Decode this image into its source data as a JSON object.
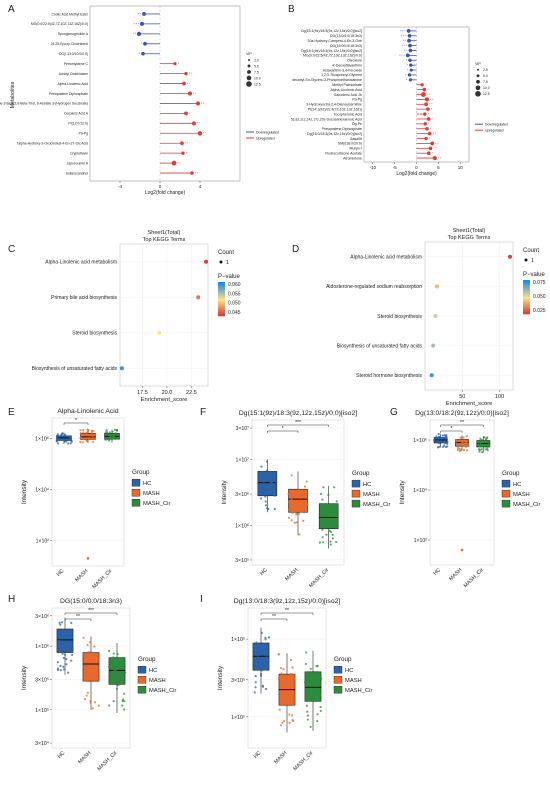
{
  "panels": {
    "A": {
      "letter": "A",
      "ylabel": "Metabolites",
      "xlabel": "Log2(fold change)",
      "xticks": [
        "-4",
        "0",
        "4"
      ],
      "xlim": [
        -7,
        8
      ],
      "metabolites": [
        {
          "name": "Cholic Acid Methyl Ester",
          "fc": -1.6,
          "dir": "down",
          "vip": 1.9,
          "stars": "* *"
        },
        {
          "name": "MG(0:0/22:5(4Z,7Z,10Z,13Z,16Z)/0:0)",
          "fc": -1.8,
          "dir": "down",
          "vip": 2.0,
          "stars": "* * *"
        },
        {
          "name": "Spongionogriolide A",
          "fc": -2.1,
          "dir": "down",
          "vip": 2.1,
          "stars": "* *"
        },
        {
          "name": "24,25-Epoxy-Cholesterol",
          "fc": -1.5,
          "dir": "down",
          "vip": 1.9,
          "stars": "*"
        },
        {
          "name": "DG(i-13:0/10:0/0:0)",
          "fc": -1.7,
          "dir": "down",
          "vip": 1.8,
          "stars": "*"
        },
        {
          "name": "Petromyidene C",
          "fc": 1.5,
          "dir": "up",
          "vip": 1.6,
          "stars": "*"
        },
        {
          "name": "Amidyl Oxathiolane",
          "fc": 2.6,
          "dir": "up",
          "vip": 1.7,
          "stars": "* *"
        },
        {
          "name": "Alpha-Linolenic Acid",
          "fc": 2.4,
          "dir": "up",
          "vip": 1.9,
          "stars": "* *"
        },
        {
          "name": "Presqualene Diphosphate",
          "fc": 3.0,
          "dir": "up",
          "vip": 2.0,
          "stars": "* *"
        },
        {
          "name": "5-Alpha-Cholestane-3-Beta,5,6-Beta-Triol, 6-Acetate 3-(Hydrogen Succinate)",
          "fc": 3.8,
          "dir": "up",
          "vip": 2.1,
          "stars": "* *"
        },
        {
          "name": "Cerpanic Acid A",
          "fc": 2.6,
          "dir": "up",
          "vip": 1.9,
          "stars": "*"
        },
        {
          "name": "PI(12:0/12:0)",
          "fc": 3.4,
          "dir": "up",
          "vip": 2.0,
          "stars": "* *"
        },
        {
          "name": "Pa-Pg",
          "fc": 4.0,
          "dir": "up",
          "vip": 2.2,
          "stars": "* *"
        },
        {
          "name": "7alpha-Hydroxy-3-Oxocholest-4-En-27-Oic Acid",
          "fc": 2.2,
          "dir": "up",
          "vip": 1.8,
          "stars": "* *"
        },
        {
          "name": "Cryptoflavin",
          "fc": 2.3,
          "dir": "up",
          "vip": 1.7,
          "stars": "*"
        },
        {
          "name": "Japonoumin A",
          "fc": 1.4,
          "dir": "up",
          "vip": 2.4,
          "stars": "* *"
        },
        {
          "name": "Solanocardinol",
          "fc": 3.2,
          "dir": "up",
          "vip": 1.8,
          "stars": "* *"
        }
      ],
      "vip_title": "VIP",
      "vip_legend": [
        "2.0",
        "5.0",
        "7.5",
        "10.0",
        "12.5"
      ],
      "legend": [
        "Downregulated",
        "Upregulated"
      ]
    },
    "B": {
      "letter": "B",
      "xlabel": "Log2(fold change)",
      "xticks": [
        "-10",
        "-5",
        "0",
        "5",
        "10"
      ],
      "xlim": [
        -12,
        12
      ],
      "metabolites": [
        {
          "name": "Dg(15:1(9z)/18:3(9z,12z,15z)/0:0)[iso2]",
          "fc": -1.8,
          "dir": "down",
          "vip": 1.9,
          "stars": "* * *"
        },
        {
          "name": "DG(13:0/0:0/18:3n3)",
          "fc": -1.6,
          "dir": "down",
          "vip": 1.8,
          "stars": "* * *"
        },
        {
          "name": "20a-Hydroxy-Campest-4-En-3-One",
          "fc": -1.7,
          "dir": "down",
          "vip": 1.9,
          "stars": "* *"
        },
        {
          "name": "DG(15:0/0:0/18:3n3)",
          "fc": -1.5,
          "dir": "down",
          "vip": 1.8,
          "stars": "* * *"
        },
        {
          "name": "Dg(15:1(9z)/18:3(9z,12z,15z)/0:0)[iso2]",
          "fc": -1.4,
          "dir": "down",
          "vip": 1.8,
          "stars": "* *"
        },
        {
          "name": "MG(0:0/22:5(4Z,7Z,10Z,13Z,16Z)/0:0)",
          "fc": -2.0,
          "dir": "down",
          "vip": 1.9,
          "stars": "* * *"
        },
        {
          "name": "Oleoxime",
          "fc": -1.5,
          "dir": "down",
          "vip": 1.7,
          "stars": "*"
        },
        {
          "name": "4'-Deoxyflavanthrin",
          "fc": -1.3,
          "dir": "down",
          "vip": 1.7,
          "stars": "*"
        },
        {
          "name": "Astaxanthin-3,4-Peroxide",
          "fc": -1.2,
          "dir": "down",
          "vip": 1.6,
          "stars": "*"
        },
        {
          "name": "1,2,3-Tricaprinoyl-Glycerol",
          "fc": -1.6,
          "dir": "down",
          "vip": 1.7,
          "stars": "*"
        },
        {
          "name": "decanyl-Sn-Glycero-3-Phosphoethanolamine",
          "fc": -1.4,
          "dir": "down",
          "vip": 1.6,
          "stars": "*"
        },
        {
          "name": "Methyl Palmoxirate",
          "fc": 1.3,
          "dir": "up",
          "vip": 1.6,
          "stars": "*"
        },
        {
          "name": "Alpha-Linolenic Acid",
          "fc": 1.8,
          "dir": "up",
          "vip": 1.8,
          "stars": "*"
        },
        {
          "name": "Ganoderic Acid Jb",
          "fc": 1.6,
          "dir": "up",
          "vip": 2.4,
          "stars": "* *"
        },
        {
          "name": "Pa-Pg",
          "fc": 2.4,
          "dir": "up",
          "vip": 2.1,
          "stars": "* *"
        },
        {
          "name": "3-Hydroxyoctra-2,4-Dienoylcarnitine",
          "fc": 2.2,
          "dir": "up",
          "vip": 1.9,
          "stars": "* *"
        },
        {
          "name": "PI(14:1(9Z)/22:4(7Z,10Z,13Z,16Z))",
          "fc": 2.6,
          "dir": "up",
          "vip": 1.8,
          "stars": "*"
        },
        {
          "name": "Tocopheronic Acid",
          "fc": 1.9,
          "dir": "up",
          "vip": 1.7,
          "stars": "*"
        },
        {
          "name": "5z,8z,11z,14z,17z,20z-Docosahexaenoic Acid",
          "fc": 2.8,
          "dir": "up",
          "vip": 1.8,
          "stars": "*"
        },
        {
          "name": "Dg-Pe",
          "fc": 2.0,
          "dir": "up",
          "vip": 1.7,
          "stars": "*"
        },
        {
          "name": "Presqualene Diphosphate",
          "fc": 2.4,
          "dir": "up",
          "vip": 1.8,
          "stars": "*"
        },
        {
          "name": "Dg(16:0/18:3(9z,12z,15z)/0:0)[iso2]",
          "fc": 3.0,
          "dir": "up",
          "vip": 1.8,
          "stars": "* *"
        },
        {
          "name": "Gasa06",
          "fc": 2.2,
          "dir": "up",
          "vip": 1.7,
          "stars": "*"
        },
        {
          "name": "SM(d18:0/20:0)",
          "fc": 3.6,
          "dir": "up",
          "vip": 1.9,
          "stars": "* *"
        },
        {
          "name": "Munjin-I",
          "fc": 3.2,
          "dir": "up",
          "vip": 1.8,
          "stars": "* *"
        },
        {
          "name": "Fludrocortisone Acetate",
          "fc": 2.8,
          "dir": "up",
          "vip": 1.8,
          "stars": "*"
        },
        {
          "name": "Atromintone",
          "fc": 4.2,
          "dir": "up",
          "vip": 2.0,
          "stars": "* *"
        }
      ],
      "vip_title": "VIP",
      "vip_legend": [
        "2.5",
        "5.0",
        "7.5",
        "10.0",
        "12.5"
      ],
      "legend": [
        "Downregulated",
        "Upregulated"
      ]
    },
    "C": {
      "letter": "C",
      "title1": "Sheet1(Total)",
      "title2": "Top KEGG Terms",
      "xlabel": "Enrichment_score",
      "xticks": [
        "17.5",
        "20.0",
        "22.5"
      ],
      "xlim": [
        15.2,
        24.2
      ],
      "terms": [
        {
          "name": "Alpha-Linolenic acid metabolism",
          "x": 24.0,
          "p": 0.043
        },
        {
          "name": "Primary bile acid biosynthesis",
          "x": 23.2,
          "p": 0.046
        },
        {
          "name": "Steroid biosynthesis",
          "x": 19.2,
          "p": 0.052
        },
        {
          "name": "Biosynthesis of unsaturated fatty acids",
          "x": 15.4,
          "p": 0.061
        }
      ],
      "count_title": "Count",
      "count_value": "1",
      "pvalue_title": "P−value",
      "pvalue_ticks": [
        "0.060",
        "0.055",
        "0.050",
        "0.045"
      ],
      "prange": [
        0.042,
        0.062
      ]
    },
    "D": {
      "letter": "D",
      "title1": "Sheet1(Total)",
      "title2": "Top KEGG Terms",
      "xlabel": "Enrichment_score",
      "xticks": [
        "50",
        "100"
      ],
      "xlim": [
        0,
        118
      ],
      "terms": [
        {
          "name": "Alpha-Linolenic acid metabolism",
          "x": 114,
          "p": 0.012
        },
        {
          "name": "Aldosterone-regulated sodium reabsorption",
          "x": 16,
          "p": 0.038
        },
        {
          "name": "Steroid biosynthesis",
          "x": 14,
          "p": 0.055
        },
        {
          "name": "Biosynthesis of unsaturated fatty acids",
          "x": 11,
          "p": 0.062
        },
        {
          "name": "Steroid hormone biosynthesis",
          "x": 9,
          "p": 0.08
        }
      ],
      "count_title": "Count",
      "count_value": "1",
      "pvalue_title": "P−value",
      "pvalue_ticks": [
        "0.075",
        "0.050",
        "0.025"
      ],
      "prange": [
        0.008,
        0.085
      ]
    },
    "E": {
      "letter": "E",
      "title": "Alpha-Linolenic Acid",
      "ylabel": "Intensity",
      "yticks": [
        "1×10⁶",
        "1×10⁴",
        "1×10²"
      ],
      "yrange": [
        1.0,
        6.8
      ],
      "ytick_vals": [
        6,
        4,
        2
      ],
      "groups": [
        "HC",
        "MASH",
        "MASH_Cir"
      ],
      "boxes": [
        [
          5.78,
          5.92,
          6.02,
          6.1,
          6.22
        ],
        [
          5.82,
          5.96,
          6.06,
          6.2,
          6.36
        ],
        [
          5.84,
          5.97,
          6.08,
          6.2,
          6.35
        ]
      ],
      "outliers": [
        [],
        [
          1.3
        ],
        []
      ],
      "signif": [
        {
          "from": 0,
          "to": 1,
          "label": "*"
        }
      ],
      "legend_title": "Group",
      "legend": [
        "HC",
        "MASH",
        "MASH_Cir"
      ]
    },
    "F": {
      "letter": "F",
      "title": "Dg(15:1(9z)/18:3(9z,12z,15z)/0:0)[iso2]",
      "ylabel": "Intensity",
      "yticks": [
        "3×10⁷",
        "1×10⁷",
        "3×10⁶",
        "1×10⁶",
        "3×10⁵"
      ],
      "yrange": [
        5.4,
        7.6
      ],
      "ytick_vals": [
        7.477,
        7.0,
        6.477,
        6.0,
        5.477
      ],
      "groups": [
        "HC",
        "MASH",
        "MASH_Cir"
      ],
      "boxes": [
        [
          6.2,
          6.45,
          6.65,
          6.82,
          7.0
        ],
        [
          5.85,
          6.2,
          6.4,
          6.55,
          6.82
        ],
        [
          5.65,
          5.95,
          6.12,
          6.33,
          6.6
        ]
      ],
      "outliers": [
        [],
        [],
        []
      ],
      "signif": [
        {
          "from": 0,
          "to": 1,
          "label": "*"
        },
        {
          "from": 0,
          "to": 2,
          "label": "***"
        }
      ],
      "legend_title": "Group",
      "legend": [
        "HC",
        "MASH",
        "MASH_Cir"
      ]
    },
    "G": {
      "letter": "G",
      "title": "Dg(13:0/18:2(9z,12z)/0:0)[iso2]",
      "ylabel": "Intensity",
      "yticks": [
        "1×10⁶",
        "1×10⁴",
        "1×10²"
      ],
      "yrange": [
        1.0,
        6.8
      ],
      "ytick_vals": [
        6,
        4,
        2
      ],
      "groups": [
        "HC",
        "MASH",
        "MASH_Cir"
      ],
      "boxes": [
        [
          5.7,
          5.88,
          6.0,
          6.1,
          6.25
        ],
        [
          5.55,
          5.75,
          5.9,
          6.02,
          6.18
        ],
        [
          5.5,
          5.72,
          5.86,
          5.98,
          6.15
        ]
      ],
      "outliers": [
        [],
        [
          1.6
        ],
        []
      ],
      "signif": [
        {
          "from": 0,
          "to": 1,
          "label": "*"
        },
        {
          "from": 0,
          "to": 2,
          "label": "**"
        }
      ],
      "legend_title": "Group",
      "legend": [
        "HC",
        "MASH",
        "MASH_Cir"
      ]
    },
    "H": {
      "letter": "H",
      "title": "DG(15:0/0:0/18:3n3)",
      "ylabel": "Intensity",
      "yticks": [
        "3×10⁶",
        "1×10⁶",
        "3×10⁵",
        "1×10⁵",
        "3×10⁴"
      ],
      "yrange": [
        4.4,
        6.6
      ],
      "ytick_vals": [
        6.477,
        6.0,
        5.477,
        5.0,
        4.477
      ],
      "groups": [
        "HC",
        "MASH",
        "MASH_Cir"
      ],
      "boxes": [
        [
          5.55,
          5.9,
          6.1,
          6.27,
          6.45
        ],
        [
          5.0,
          5.45,
          5.72,
          5.9,
          6.15
        ],
        [
          4.95,
          5.4,
          5.62,
          5.82,
          6.05
        ]
      ],
      "outliers": [
        [],
        [],
        []
      ],
      "signif": [
        {
          "from": 0,
          "to": 1,
          "label": "**"
        },
        {
          "from": 0,
          "to": 2,
          "label": "***"
        }
      ],
      "legend_title": "Group",
      "legend": [
        "HC",
        "MASH",
        "MASH_Cir"
      ]
    },
    "I": {
      "letter": "I",
      "title": "Dg(13:0/18:3(9z,12z,15z)/0:0)[iso2]",
      "ylabel": "Intensity",
      "yticks": [
        "1×10⁶",
        "3×10⁵",
        "1×10⁵"
      ],
      "yrange": [
        4.6,
        6.4
      ],
      "ytick_vals": [
        6.0,
        5.477,
        5.0
      ],
      "groups": [
        "HC",
        "MASH",
        "MASH_Cir"
      ],
      "boxes": [
        [
          5.3,
          5.6,
          5.78,
          5.95,
          6.15
        ],
        [
          4.8,
          5.15,
          5.35,
          5.55,
          5.82
        ],
        [
          4.82,
          5.2,
          5.38,
          5.58,
          5.85
        ]
      ],
      "outliers": [
        [],
        [],
        []
      ],
      "signif": [
        {
          "from": 0,
          "to": 1,
          "label": "**"
        },
        {
          "from": 0,
          "to": 2,
          "label": "**"
        }
      ],
      "legend_title": "Group",
      "legend": [
        "HC",
        "MASH",
        "MASH_Cir"
      ]
    }
  },
  "colors": {
    "down": "#3f51b5",
    "up": "#e53935",
    "HC": "#2c63a8",
    "MASH": "#e8692c",
    "MASH_Cir": "#2e8b3e",
    "p_low": "#d32f2f",
    "p_mid": "#ffe082",
    "p_high": "#1e88e5"
  },
  "chart_data": [
    {
      "panel": "A",
      "type": "scatter",
      "title": "",
      "xlabel": "Log2(fold change)",
      "ylabel": "Metabolites",
      "xlim": [
        -7,
        8
      ],
      "note_series": [
        "Downregulated",
        "Upregulated"
      ]
    },
    {
      "panel": "B",
      "type": "scatter",
      "title": "",
      "xlabel": "Log2(fold change)",
      "ylabel": "",
      "xlim": [
        -12,
        12
      ]
    },
    {
      "panel": "C",
      "type": "scatter",
      "title": "Sheet1(Total) Top KEGG Terms",
      "xlabel": "Enrichment_score",
      "categories": [
        "Alpha-Linolenic acid metabolism",
        "Primary bile acid biosynthesis",
        "Steroid biosynthesis",
        "Biosynthesis of unsaturated fatty acids"
      ],
      "x": [
        24.0,
        23.2,
        19.2,
        15.4
      ]
    },
    {
      "panel": "D",
      "type": "scatter",
      "title": "Sheet1(Total) Top KEGG Terms",
      "xlabel": "Enrichment_score",
      "categories": [
        "Alpha-Linolenic acid metabolism",
        "Aldosterone-regulated sodium reabsorption",
        "Steroid biosynthesis",
        "Biosynthesis of unsaturated fatty acids",
        "Steroid hormone biosynthesis"
      ],
      "x": [
        114,
        16,
        14,
        11,
        9
      ]
    },
    {
      "panel": "E",
      "type": "box",
      "title": "Alpha-Linolenic Acid",
      "ylabel": "Intensity",
      "categories": [
        "HC",
        "MASH",
        "MASH_Cir"
      ]
    },
    {
      "panel": "F",
      "type": "box",
      "title": "Dg(15:1(9z)/18:3(9z,12z,15z)/0:0)[iso2]",
      "ylabel": "Intensity",
      "categories": [
        "HC",
        "MASH",
        "MASH_Cir"
      ]
    },
    {
      "panel": "G",
      "type": "box",
      "title": "Dg(13:0/18:2(9z,12z)/0:0)[iso2]",
      "ylabel": "Intensity",
      "categories": [
        "HC",
        "MASH",
        "MASH_Cir"
      ]
    },
    {
      "panel": "H",
      "type": "box",
      "title": "DG(15:0/0:0/18:3n3)",
      "ylabel": "Intensity",
      "categories": [
        "HC",
        "MASH",
        "MASH_Cir"
      ]
    },
    {
      "panel": "I",
      "type": "box",
      "title": "Dg(13:0/18:3(9z,12z,15z)/0:0)[iso2]",
      "ylabel": "Intensity",
      "categories": [
        "HC",
        "MASH",
        "MASH_Cir"
      ]
    }
  ]
}
